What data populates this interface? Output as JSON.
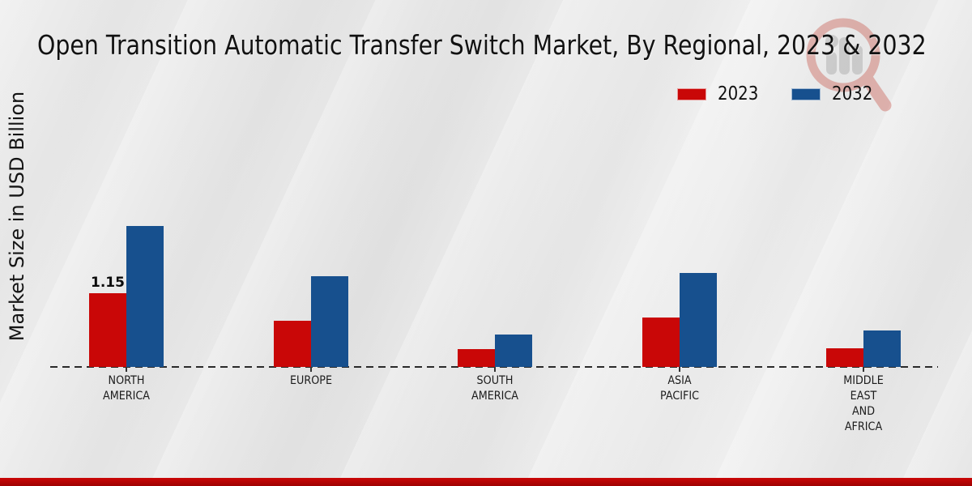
{
  "title": "Open Transition Automatic Transfer Switch Market, By Regional, 2023 & 2032",
  "y_axis_label": "Market Size in USD Billion",
  "legend": {
    "items": [
      {
        "label": "2023",
        "color": "#c90707"
      },
      {
        "label": "2032",
        "color": "#17508e"
      }
    ]
  },
  "icons": {
    "watermark": "magnifier-bar-chart-logo"
  },
  "colors": {
    "series_2023": "#c90707",
    "series_2032": "#17508e",
    "background": "#e9e9e9",
    "baseline": "#2a2a2a",
    "bottom_strip": "#b30404"
  },
  "chart_data": {
    "type": "bar",
    "title": "Open Transition Automatic Transfer Switch Market, By Regional, 2023 & 2032",
    "xlabel": "",
    "ylabel": "Market Size in USD Billion",
    "unit": "USD Billion",
    "categories": [
      "North America",
      "Europe",
      "South America",
      "Asia Pacific",
      "Middle East and Africa"
    ],
    "category_display_lines": [
      [
        "NORTH",
        "AMERICA"
      ],
      [
        "EUROPE"
      ],
      [
        "SOUTH",
        "AMERICA"
      ],
      [
        "ASIA",
        "PACIFIC"
      ],
      [
        "MIDDLE",
        "EAST",
        "AND",
        "AFRICA"
      ]
    ],
    "series": [
      {
        "name": "2023",
        "color": "#c90707",
        "values": [
          1.15,
          0.72,
          0.28,
          0.77,
          0.29
        ],
        "labels": [
          "1.15",
          "",
          "",
          "",
          ""
        ]
      },
      {
        "name": "2032",
        "color": "#17508e",
        "values": [
          2.2,
          1.41,
          0.5,
          1.47,
          0.57
        ],
        "labels": [
          "",
          "",
          "",
          "",
          ""
        ]
      }
    ],
    "ylim": [
      0,
      2.4
    ],
    "grid": false,
    "y_axis_ticks_visible": false,
    "legend_position": "top-right",
    "baseline_style": "dashed"
  }
}
